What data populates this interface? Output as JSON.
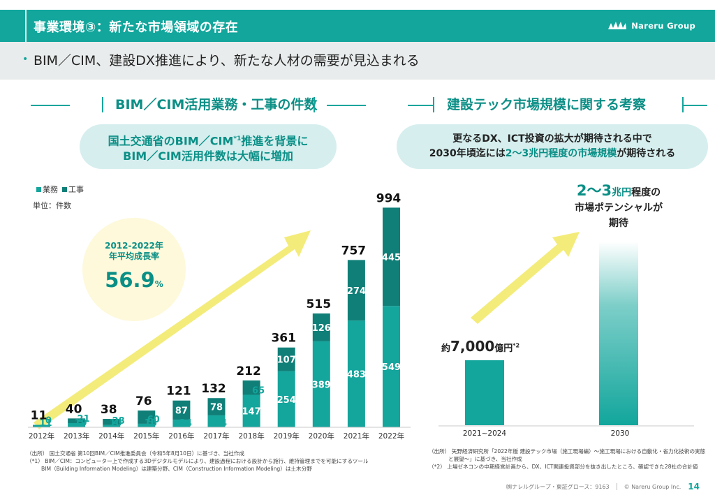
{
  "header": {
    "title": "事業環境③：新たな市場領域の存在",
    "logo_text": "Nareru Group",
    "subtitle": "BIM／CIM、建設DX推進により、新たな人材の需要が見込まれる"
  },
  "left": {
    "section_title": "BIM／CIM活用業務・工事の件数",
    "bubble_line1_a": "国土交通省のBIM／CIM",
    "bubble_line1_sup": "*1",
    "bubble_line1_b": "推進を背景に",
    "bubble_line2": "BIM／CIM活用件数は大幅に増加",
    "legend_work": "業務",
    "legend_construction": "工事",
    "unit": "単位：件数",
    "growth_label_1": "2012-2022年",
    "growth_label_2": "年平均成長率",
    "growth_value": "56.9",
    "growth_unit": "%",
    "note_source": "（出所） 国土交通省 第10回BIM／CIM推進委員会（令和5年8月10日）に基づき、当社作成",
    "note_1a": "（*1） BIM／CIM：コンピューター上で作成する3Dデジタルモデルにより、建設過程における設計から施行、維持管理までを可能にするツール",
    "note_1b": "BIM（Building Information Modeling）は建築分野、CIM（Construction Information Modeling）は土木分野"
  },
  "right": {
    "section_title": "建設テック市場規模に関する考察",
    "bubble_line1": "更なるDX、ICT投資の拡大が期待される中で",
    "bubble_line2_a": "2030年頃迄には",
    "bubble_line2_b": "2～3兆円程度の市場規模",
    "bubble_line2_c": "が期待される",
    "bar1_prefix": "約",
    "bar1_value": "7,000",
    "bar1_unit": "億円",
    "bar1_sup": "*2",
    "bar2_value": "2～3",
    "bar2_unit": "兆円",
    "bar2_tail": "程度の",
    "bar2_line2": "市場ポテンシャルが",
    "bar2_line3": "期待",
    "x1": "2021~2024",
    "x2": "2030",
    "note_source_a": "（出所） 矢野経済研究所「2022年版 建設テック市場（施工現場編）～施工現場における自動化・省力化技術の実態",
    "note_source_b": "と展望～」に基づき、当社作成",
    "note_2": "（*2） 上場ゼネコンの中期経営計画から、DX、ICT関連投資部分を抜き出したところ、確認できた28社の合計値"
  },
  "footer": {
    "company": "㈱ナレルグループ・東証グロース：9163",
    "copyright": "© Nareru Group Inc.",
    "page": "14"
  },
  "colors": {
    "teal": "#12a69c",
    "work": "#14a59c",
    "construction": "#0f7f78",
    "arrow": "#f2ea6c"
  },
  "chart_data": [
    {
      "type": "bar",
      "stacked": true,
      "categories": [
        "2012年",
        "2013年",
        "2014年",
        "2015年",
        "2016年",
        "2017年",
        "2018年",
        "2019年",
        "2020年",
        "2021年",
        "2022年"
      ],
      "series": [
        {
          "name": "業務",
          "values": [
            11,
            19,
            10,
            16,
            34,
            54,
            147,
            254,
            389,
            483,
            549
          ]
        },
        {
          "name": "工事",
          "values": [
            0,
            21,
            28,
            60,
            87,
            78,
            65,
            107,
            126,
            274,
            445
          ]
        }
      ],
      "totals": [
        11,
        40,
        38,
        76,
        121,
        132,
        212,
        361,
        515,
        757,
        994
      ],
      "title": "BIM／CIM活用業務・工事の件数",
      "ylabel": "単位：件数",
      "ylim": [
        0,
        1000
      ],
      "grid": false,
      "legend": "top-left"
    },
    {
      "type": "bar",
      "categories": [
        "2021~2024",
        "2030"
      ],
      "values": [
        7000,
        25000
      ],
      "units": "億円",
      "title": "建設テック市場規模に関する考察"
    }
  ]
}
